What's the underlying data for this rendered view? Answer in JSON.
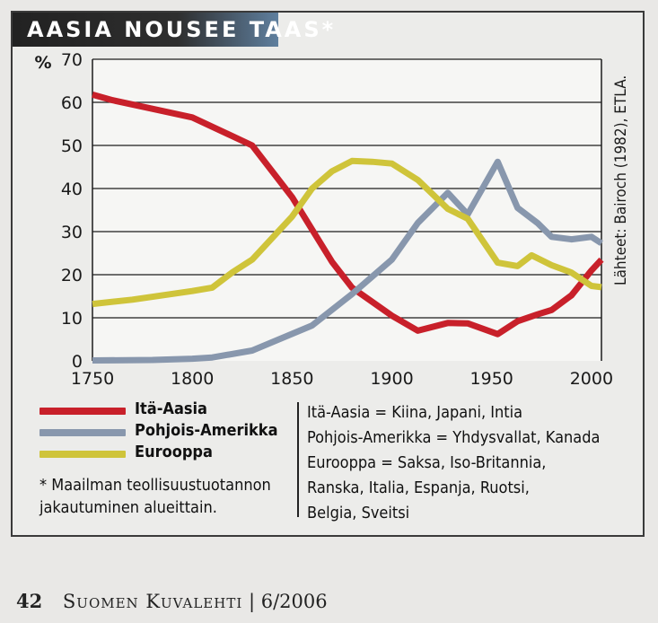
{
  "title": "AASIA NOUSEE TAAS*",
  "source": "Lähteet: Bairoch (1982), ETLA.",
  "chart_data": {
    "type": "line",
    "x_ticks": [
      1750,
      1800,
      1850,
      1900,
      1950,
      2000
    ],
    "y_ticks": [
      0,
      10,
      20,
      30,
      40,
      50,
      60,
      70
    ],
    "y_unit": "%",
    "xlim": [
      1750,
      2005
    ],
    "ylim": [
      0,
      70
    ],
    "grid": "horizontal",
    "series": [
      {
        "name": "Itä-Aasia",
        "color": "#c8202a",
        "x": [
          1750,
          1760,
          1780,
          1800,
          1830,
          1850,
          1870,
          1880,
          1900,
          1913,
          1928,
          1938,
          1953,
          1963,
          1973,
          1980,
          1990,
          2000,
          2005
        ],
        "y": [
          61.8,
          60.5,
          58.5,
          56.5,
          50,
          38,
          23,
          17,
          10.5,
          7,
          8.8,
          8.7,
          6.2,
          9.2,
          10.8,
          11.8,
          15.2,
          21,
          23.5
        ]
      },
      {
        "name": "Pohjois-Amerikka",
        "color": "#8897ad",
        "x": [
          1750,
          1780,
          1800,
          1810,
          1830,
          1860,
          1880,
          1900,
          1913,
          1928,
          1938,
          1953,
          1963,
          1973,
          1980,
          1990,
          2000,
          2005
        ],
        "y": [
          0.1,
          0.2,
          0.5,
          0.8,
          2.4,
          8.2,
          15.5,
          23.5,
          32,
          39,
          34,
          46.2,
          35.5,
          32,
          28.8,
          28.2,
          28.8,
          27.3
        ]
      },
      {
        "name": "Eurooppa",
        "color": "#cfc43a",
        "x": [
          1750,
          1770,
          1800,
          1810,
          1820,
          1830,
          1850,
          1860,
          1870,
          1880,
          1890,
          1900,
          1913,
          1928,
          1938,
          1953,
          1963,
          1970,
          1980,
          1990,
          2000,
          2005
        ],
        "y": [
          13.2,
          14.2,
          16.2,
          17,
          20.5,
          23.5,
          33.5,
          40,
          44,
          46.4,
          46.2,
          45.8,
          42,
          35.3,
          33,
          22.8,
          22,
          24.5,
          22.2,
          20.5,
          17.4,
          17.1
        ]
      }
    ]
  },
  "legend": [
    {
      "label": "Itä-Aasia",
      "color": "#c8202a"
    },
    {
      "label": "Pohjois-Amerikka",
      "color": "#8897ad"
    },
    {
      "label": "Eurooppa",
      "color": "#cfc43a"
    }
  ],
  "note": {
    "line1": "* Maailman teollisuustuotannon",
    "line2": "jakautuminen alueittain."
  },
  "definitions": [
    "Itä-Aasia = Kiina, Japani, Intia",
    "Pohjois-Amerikka = Yhdysvallat, Kanada",
    "Eurooppa = Saksa, Iso-Britannia,",
    "Ranska, Italia, Espanja, Ruotsi,",
    "Belgia, Sveitsi"
  ],
  "footer": {
    "page_number": "42",
    "publication": "Suomen Kuvalehti",
    "issue": "| 6/2006"
  }
}
